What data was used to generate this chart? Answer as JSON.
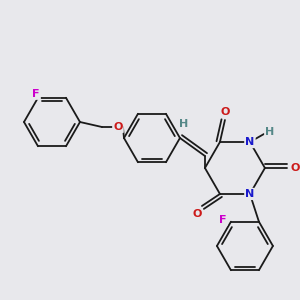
{
  "background_color": "#e8e8ec",
  "bond_color": "#1a1a1a",
  "colors": {
    "N": "#1a1acc",
    "O": "#cc1a1a",
    "F": "#cc00cc",
    "H": "#558888",
    "C": "#1a1a1a"
  },
  "figsize": [
    3.0,
    3.0
  ],
  "dpi": 100
}
